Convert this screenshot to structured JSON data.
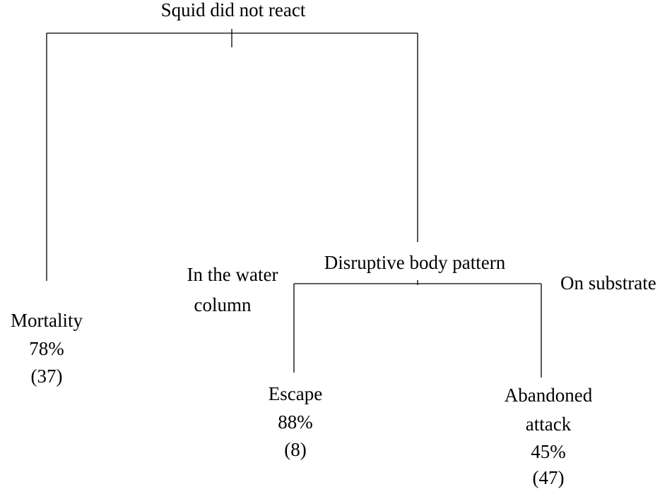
{
  "root": {
    "label": "Squid did not react"
  },
  "leaf_left": {
    "lines": [
      "Mortality",
      "78%",
      "(37)"
    ]
  },
  "split": {
    "label": "Disruptive body pattern",
    "branch_left": [
      "In the water",
      "column"
    ],
    "branch_right": "On substrate"
  },
  "leaf_mid": {
    "lines": [
      "Escape",
      "88%",
      "(8)"
    ]
  },
  "leaf_right": {
    "lines": [
      "Abandoned",
      "attack",
      "45%",
      "(47)"
    ]
  }
}
